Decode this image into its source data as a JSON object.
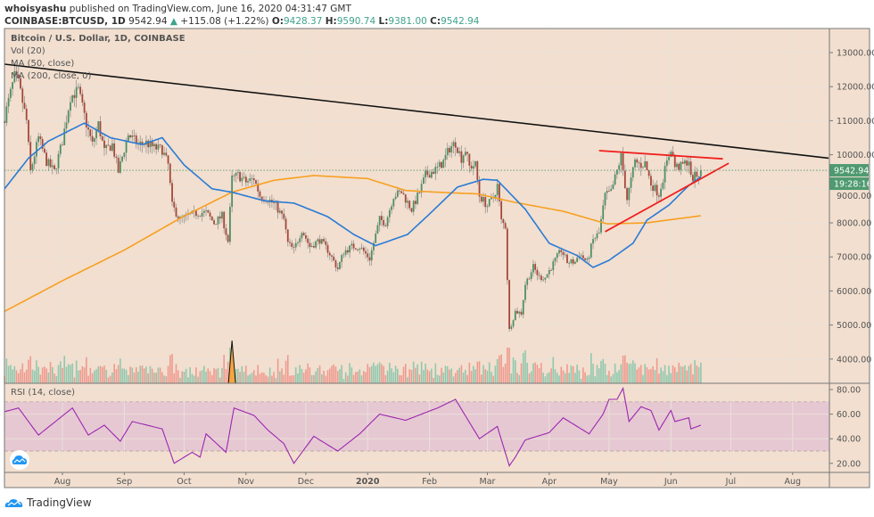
{
  "header": {
    "publisher": "whoisyashu",
    "published": "published on TradingView.com, June 16, 2020 04:31:47 GMT",
    "symbol": "COINBASE:BTCUSD, 1D",
    "last": "9542.94",
    "change": "+115.08 (+1.22%)",
    "o_label": "O:",
    "o": "9428.37",
    "h_label": "H:",
    "h": "9590.74",
    "l_label": "L:",
    "l": "9381.00",
    "c_label": "C:",
    "c": "9542.94"
  },
  "legend": [
    "Bitcoin / U.S. Dollar, 1D, COINBASE",
    "Vol (20)",
    "MA (50, close)",
    "MA (200, close, 0)"
  ],
  "rsi_legend": "RSI (14, close)",
  "price_label": "9542.94",
  "countdown_label": "19:28:16",
  "brand": "TradingView",
  "colors": {
    "background": "#f2dfcf",
    "up": "#4e8f63",
    "down": "#a6473b",
    "ma50": "#2a7bd6",
    "ma200": "#f7a021",
    "trendline": "#111111",
    "triangle": "#f0201e",
    "rsi": "#9c27b0",
    "rsi_band": "#e6c8d3",
    "price_tag": "#4f9a70"
  },
  "chart_data": [
    {
      "type": "candlestick",
      "title": "Bitcoin / U.S. Dollar, 1D, COINBASE",
      "y_ticks": [
        "13000.00",
        "12000.00",
        "11000.00",
        "10000.00",
        "9000.00",
        "8000.00",
        "7000.00",
        "6000.00",
        "5000.00",
        "4000.00"
      ],
      "ylim": [
        3500,
        13700
      ],
      "x_ticks": [
        {
          "label": "Aug",
          "date": "2019-08-01"
        },
        {
          "label": "Sep",
          "date": "2019-09-01"
        },
        {
          "label": "Oct",
          "date": "2019-10-01"
        },
        {
          "label": "Nov",
          "date": "2019-11-01"
        },
        {
          "label": "Dec",
          "date": "2019-12-01"
        },
        {
          "label": "2020",
          "date": "2020-01-01"
        },
        {
          "label": "Feb",
          "date": "2020-02-01"
        },
        {
          "label": "Mar",
          "date": "2020-03-01"
        },
        {
          "label": "Apr",
          "date": "2020-04-01"
        },
        {
          "label": "May",
          "date": "2020-05-01"
        },
        {
          "label": "Jun",
          "date": "2020-06-01"
        },
        {
          "label": "Jul",
          "date": "2020-07-01"
        },
        {
          "label": "Aug",
          "date": "2020-08-01"
        }
      ],
      "close": [
        [
          "2019-07-03",
          11100
        ],
        [
          "2019-07-08",
          12300
        ],
        [
          "2019-07-10",
          12100
        ],
        [
          "2019-07-14",
          11000
        ],
        [
          "2019-07-16",
          9500
        ],
        [
          "2019-07-20",
          10500
        ],
        [
          "2019-07-24",
          9800
        ],
        [
          "2019-07-28",
          9500
        ],
        [
          "2019-08-01",
          10400
        ],
        [
          "2019-08-05",
          11700
        ],
        [
          "2019-08-09",
          11900
        ],
        [
          "2019-08-13",
          10900
        ],
        [
          "2019-08-16",
          10300
        ],
        [
          "2019-08-19",
          10900
        ],
        [
          "2019-08-22",
          10100
        ],
        [
          "2019-08-26",
          10300
        ],
        [
          "2019-08-29",
          9500
        ],
        [
          "2019-09-03",
          10600
        ],
        [
          "2019-09-08",
          10300
        ],
        [
          "2019-09-12",
          10350
        ],
        [
          "2019-09-16",
          10200
        ],
        [
          "2019-09-20",
          10150
        ],
        [
          "2019-09-23",
          9700
        ],
        [
          "2019-09-25",
          8500
        ],
        [
          "2019-09-29",
          8100
        ],
        [
          "2019-10-03",
          8200
        ],
        [
          "2019-10-08",
          8300
        ],
        [
          "2019-10-12",
          8300
        ],
        [
          "2019-10-16",
          8000
        ],
        [
          "2019-10-20",
          8200
        ],
        [
          "2019-10-23",
          7450
        ],
        [
          "2019-10-25",
          9300
        ],
        [
          "2019-10-28",
          9400
        ],
        [
          "2019-11-01",
          9200
        ],
        [
          "2019-11-05",
          9300
        ],
        [
          "2019-11-08",
          8800
        ],
        [
          "2019-11-12",
          8700
        ],
        [
          "2019-11-16",
          8500
        ],
        [
          "2019-11-20",
          8100
        ],
        [
          "2019-11-22",
          7400
        ],
        [
          "2019-11-25",
          7200
        ],
        [
          "2019-11-29",
          7800
        ],
        [
          "2019-12-03",
          7300
        ],
        [
          "2019-12-08",
          7500
        ],
        [
          "2019-12-12",
          7200
        ],
        [
          "2019-12-17",
          6650
        ],
        [
          "2019-12-20",
          7150
        ],
        [
          "2019-12-24",
          7300
        ],
        [
          "2019-12-28",
          7300
        ],
        [
          "2020-01-02",
          6950
        ],
        [
          "2020-01-07",
          8100
        ],
        [
          "2020-01-10",
          8000
        ],
        [
          "2020-01-14",
          8800
        ],
        [
          "2020-01-18",
          8900
        ],
        [
          "2020-01-23",
          8400
        ],
        [
          "2020-01-27",
          8900
        ],
        [
          "2020-01-30",
          9400
        ],
        [
          "2020-02-05",
          9600
        ],
        [
          "2020-02-08",
          9800
        ],
        [
          "2020-02-11",
          10200
        ],
        [
          "2020-02-14",
          10350
        ],
        [
          "2020-02-17",
          9900
        ],
        [
          "2020-02-19",
          10150
        ],
        [
          "2020-02-21",
          9650
        ],
        [
          "2020-02-24",
          9700
        ],
        [
          "2020-02-26",
          8800
        ],
        [
          "2020-03-01",
          8500
        ],
        [
          "2020-03-04",
          8750
        ],
        [
          "2020-03-06",
          9100
        ],
        [
          "2020-03-08",
          8050
        ],
        [
          "2020-03-10",
          7900
        ],
        [
          "2020-03-12",
          4850
        ],
        [
          "2020-03-15",
          5400
        ],
        [
          "2020-03-18",
          5350
        ],
        [
          "2020-03-20",
          6200
        ],
        [
          "2020-03-24",
          6700
        ],
        [
          "2020-03-27",
          6400
        ],
        [
          "2020-03-30",
          6400
        ],
        [
          "2020-04-03",
          6800
        ],
        [
          "2020-04-07",
          7200
        ],
        [
          "2020-04-10",
          6850
        ],
        [
          "2020-04-14",
          6850
        ],
        [
          "2020-04-16",
          7100
        ],
        [
          "2020-04-20",
          6850
        ],
        [
          "2020-04-23",
          7500
        ],
        [
          "2020-04-26",
          7700
        ],
        [
          "2020-04-29",
          8800
        ],
        [
          "2020-05-02",
          8900
        ],
        [
          "2020-05-07",
          9950
        ],
        [
          "2020-05-10",
          8700
        ],
        [
          "2020-05-14",
          9800
        ],
        [
          "2020-05-17",
          9700
        ],
        [
          "2020-05-19",
          9750
        ],
        [
          "2020-05-22",
          9150
        ],
        [
          "2020-05-26",
          8850
        ],
        [
          "2020-05-29",
          9550
        ],
        [
          "2020-06-01",
          10200
        ],
        [
          "2020-06-03",
          9650
        ],
        [
          "2020-06-06",
          9650
        ],
        [
          "2020-06-08",
          9750
        ],
        [
          "2020-06-10",
          9850
        ],
        [
          "2020-06-11",
          9300
        ],
        [
          "2020-06-14",
          9400
        ],
        [
          "2020-06-15",
          9450
        ],
        [
          "2020-06-16",
          9542.94
        ]
      ],
      "ma50": [
        [
          "2019-07-03",
          9000
        ],
        [
          "2019-07-15",
          9900
        ],
        [
          "2019-07-25",
          10400
        ],
        [
          "2019-08-12",
          10930
        ],
        [
          "2019-08-25",
          10500
        ],
        [
          "2019-09-10",
          10300
        ],
        [
          "2019-09-20",
          10500
        ],
        [
          "2019-10-01",
          9700
        ],
        [
          "2019-10-15",
          9000
        ],
        [
          "2019-10-25",
          8900
        ],
        [
          "2019-11-10",
          8650
        ],
        [
          "2019-11-25",
          8580
        ],
        [
          "2019-12-12",
          8180
        ],
        [
          "2019-12-25",
          7660
        ],
        [
          "2020-01-05",
          7330
        ],
        [
          "2020-01-21",
          7660
        ],
        [
          "2020-02-01",
          8260
        ],
        [
          "2020-02-15",
          9050
        ],
        [
          "2020-02-28",
          9280
        ],
        [
          "2020-03-06",
          9250
        ],
        [
          "2020-03-20",
          8400
        ],
        [
          "2020-04-01",
          7400
        ],
        [
          "2020-04-15",
          7040
        ],
        [
          "2020-04-23",
          6690
        ],
        [
          "2020-05-01",
          6900
        ],
        [
          "2020-05-13",
          7400
        ],
        [
          "2020-05-20",
          8080
        ],
        [
          "2020-05-31",
          8520
        ],
        [
          "2020-06-10",
          9100
        ],
        [
          "2020-06-16",
          9350
        ]
      ],
      "ma200": [
        [
          "2019-07-03",
          5400
        ],
        [
          "2019-08-01",
          6300
        ],
        [
          "2019-09-01",
          7200
        ],
        [
          "2019-10-01",
          8200
        ],
        [
          "2019-10-25",
          8900
        ],
        [
          "2019-11-15",
          9250
        ],
        [
          "2019-12-05",
          9390
        ],
        [
          "2020-01-01",
          9300
        ],
        [
          "2020-01-20",
          8950
        ],
        [
          "2020-02-05",
          8900
        ],
        [
          "2020-02-25",
          8850
        ],
        [
          "2020-03-15",
          8600
        ],
        [
          "2020-04-08",
          8340
        ],
        [
          "2020-04-30",
          7970
        ],
        [
          "2020-05-20",
          8000
        ],
        [
          "2020-06-16",
          8210
        ]
      ],
      "trendlines": [
        {
          "role": "descending resistance",
          "color": "#111111",
          "from": [
            "2019-07-03",
            12660
          ],
          "to": [
            "2020-08-19",
            9900
          ]
        },
        {
          "role": "triangle upper",
          "color": "#f0201e",
          "from": [
            "2020-04-26",
            10120
          ],
          "to": [
            "2020-06-27",
            9880
          ]
        },
        {
          "role": "triangle lower",
          "color": "#f0201e",
          "from": [
            "2020-04-29",
            7740
          ],
          "to": [
            "2020-06-30",
            9750
          ]
        }
      ],
      "last_price": 9542.94
    },
    {
      "type": "line",
      "title": "RSI (14, close)",
      "ylim": [
        10,
        90
      ],
      "y_ticks": [
        "80.00",
        "60.00",
        "40.00",
        "20.00"
      ],
      "band": [
        30,
        70
      ],
      "rsi": [
        [
          "2019-07-03",
          62
        ],
        [
          "2019-07-10",
          65
        ],
        [
          "2019-07-20",
          43
        ],
        [
          "2019-08-06",
          65
        ],
        [
          "2019-08-14",
          43
        ],
        [
          "2019-08-22",
          51
        ],
        [
          "2019-08-30",
          38
        ],
        [
          "2019-09-05",
          54
        ],
        [
          "2019-09-20",
          48
        ],
        [
          "2019-09-26",
          20
        ],
        [
          "2019-10-05",
          29
        ],
        [
          "2019-10-09",
          25
        ],
        [
          "2019-10-12",
          44
        ],
        [
          "2019-10-22",
          29
        ],
        [
          "2019-10-26",
          65
        ],
        [
          "2019-11-05",
          59
        ],
        [
          "2019-11-12",
          47
        ],
        [
          "2019-11-20",
          36
        ],
        [
          "2019-11-25",
          20
        ],
        [
          "2019-12-05",
          42
        ],
        [
          "2019-12-17",
          30
        ],
        [
          "2019-12-28",
          44
        ],
        [
          "2020-01-07",
          60
        ],
        [
          "2020-01-20",
          55
        ],
        [
          "2020-02-05",
          65
        ],
        [
          "2020-02-14",
          72
        ],
        [
          "2020-02-26",
          40
        ],
        [
          "2020-03-06",
          50
        ],
        [
          "2020-03-12",
          18
        ],
        [
          "2020-03-15",
          25
        ],
        [
          "2020-03-20",
          39
        ],
        [
          "2020-04-01",
          45
        ],
        [
          "2020-04-08",
          57
        ],
        [
          "2020-04-15",
          50
        ],
        [
          "2020-04-21",
          44
        ],
        [
          "2020-04-28",
          60
        ],
        [
          "2020-05-01",
          72
        ],
        [
          "2020-05-05",
          72
        ],
        [
          "2020-05-08",
          81
        ],
        [
          "2020-05-11",
          54
        ],
        [
          "2020-05-17",
          66
        ],
        [
          "2020-05-22",
          63
        ],
        [
          "2020-05-26",
          47
        ],
        [
          "2020-06-01",
          63
        ],
        [
          "2020-06-03",
          54
        ],
        [
          "2020-06-10",
          57
        ],
        [
          "2020-06-11",
          48
        ],
        [
          "2020-06-16",
          51
        ]
      ]
    }
  ]
}
